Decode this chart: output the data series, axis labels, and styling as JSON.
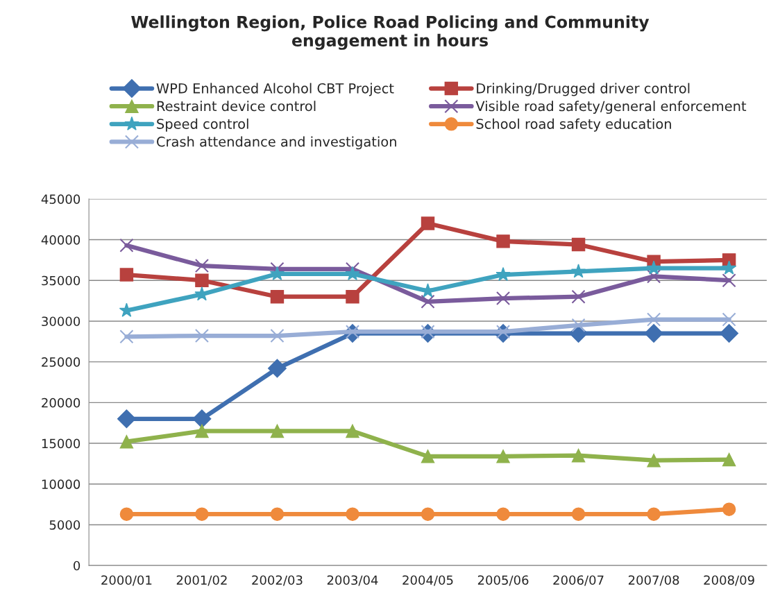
{
  "chart_data": {
    "type": "line",
    "title": "Wellington Region, Police Road Policing and Community\nengagement in hours",
    "categories": [
      "2000/01",
      "2001/02",
      "2002/03",
      "2003/04",
      "2004/05",
      "2005/06",
      "2006/07",
      "2007/08",
      "2008/09"
    ],
    "series": [
      {
        "name": "WPD Enhanced Alcohol CBT Project",
        "color": "#3f6fb0",
        "marker": "diamond",
        "values": [
          18000,
          18000,
          24200,
          28500,
          28500,
          28500,
          28500,
          28500,
          28500
        ]
      },
      {
        "name": "Drinking/Drugged driver control",
        "color": "#b8413e",
        "marker": "square",
        "values": [
          35700,
          35000,
          33000,
          33000,
          42000,
          39800,
          39400,
          37300,
          37500
        ]
      },
      {
        "name": "Restraint device control",
        "color": "#8fb24c",
        "marker": "triangle",
        "values": [
          15200,
          16500,
          16500,
          16500,
          13400,
          13400,
          13500,
          12900,
          13000
        ]
      },
      {
        "name": "Visible road safety/general enforcement",
        "color": "#7a5b9c",
        "marker": "cross",
        "values": [
          39300,
          36800,
          36400,
          36400,
          32400,
          32800,
          33000,
          35500,
          35000
        ]
      },
      {
        "name": "Speed control",
        "color": "#3fa3bf",
        "marker": "star",
        "values": [
          31300,
          33300,
          35800,
          35800,
          33700,
          35700,
          36100,
          36500,
          36500
        ]
      },
      {
        "name": "School road safety education",
        "color": "#ef8a3c",
        "marker": "circle",
        "values": [
          6300,
          6300,
          6300,
          6300,
          6300,
          6300,
          6300,
          6300,
          6900
        ]
      },
      {
        "name": "Crash attendance and investigation",
        "color": "#98add6",
        "marker": "cross",
        "values": [
          28100,
          28200,
          28200,
          28700,
          28700,
          28700,
          29500,
          30200,
          30200
        ]
      }
    ],
    "ylim": [
      0,
      45000
    ],
    "yticks": [
      0,
      5000,
      10000,
      15000,
      20000,
      25000,
      30000,
      35000,
      40000,
      45000
    ],
    "grid": "y",
    "legend": "top"
  }
}
